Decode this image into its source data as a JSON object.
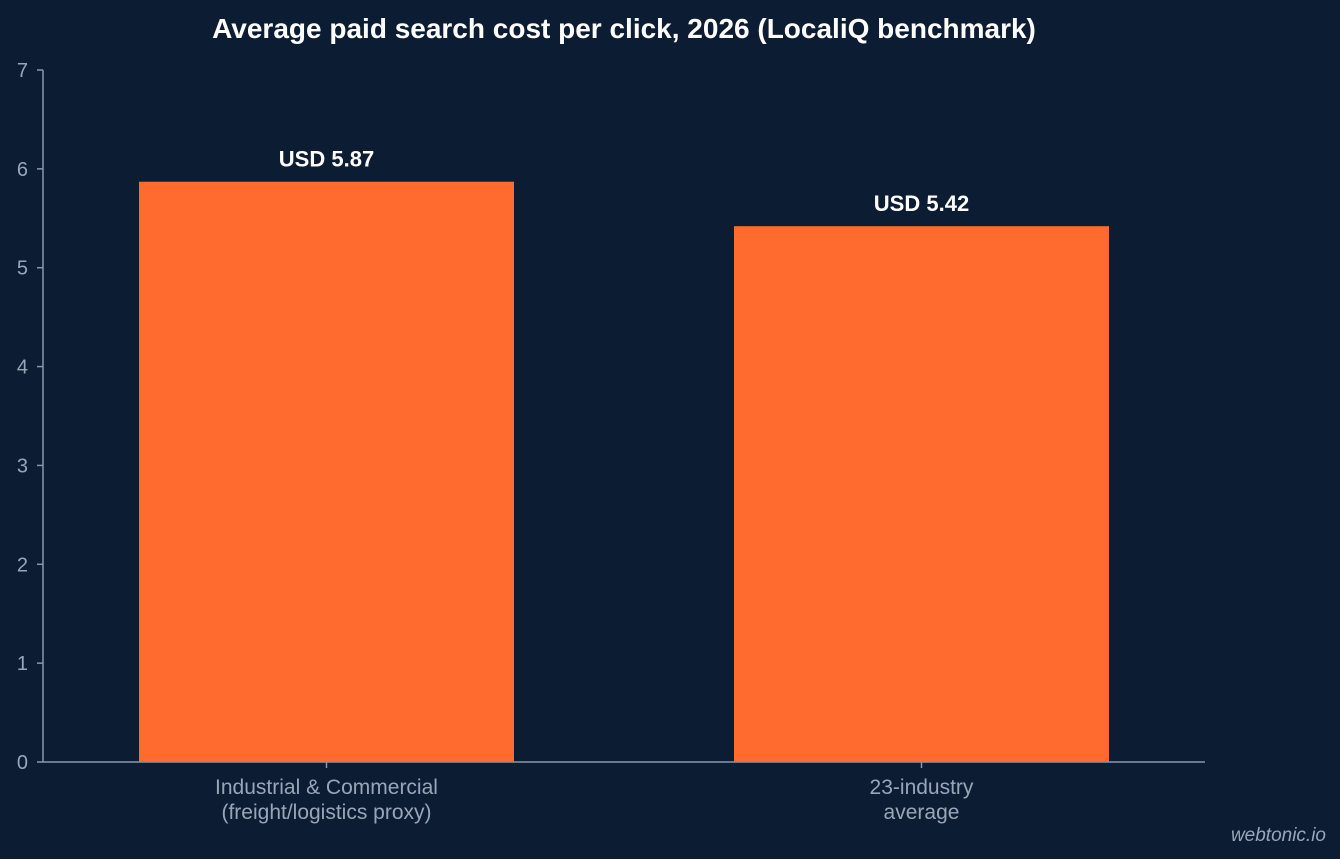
{
  "chart_data": {
    "type": "bar",
    "title": "Average paid search cost per click, 2026 (LocaliQ benchmark)",
    "categories": [
      [
        "Industrial & Commercial",
        "(freight/logistics proxy)"
      ],
      [
        "23-industry",
        "average"
      ]
    ],
    "values": [
      5.87,
      5.42
    ],
    "data_labels": [
      "USD 5.87",
      "USD 5.42"
    ],
    "xlabel": "",
    "ylabel": "",
    "ylim": [
      0,
      7
    ],
    "yticks": [
      "0",
      "1",
      "2",
      "3",
      "4",
      "5",
      "6",
      "7"
    ],
    "grid": false,
    "legend": "none",
    "colors": {
      "background": "#0b1c33",
      "bar": "#ff6b2f",
      "axis": "#8a97ab",
      "tick_text": "#9aa6b8",
      "title_text": "#ffffff",
      "data_label_text": "#ffffff"
    }
  },
  "watermark": "webtonic.io"
}
